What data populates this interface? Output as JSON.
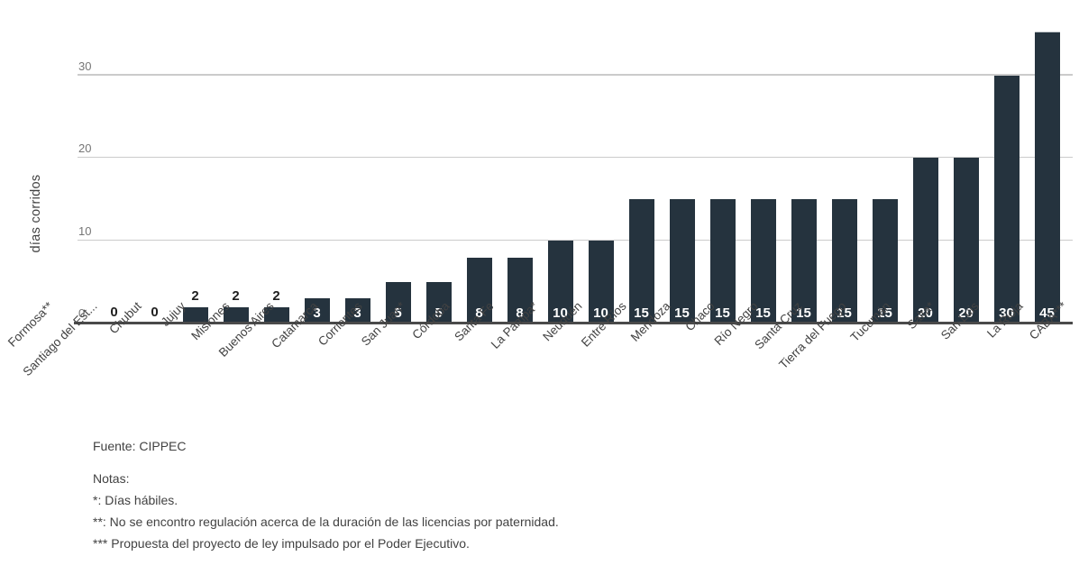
{
  "chart_data": {
    "type": "bar",
    "title": "",
    "xlabel": "",
    "ylabel": "días corridos",
    "yticks": [
      0,
      10,
      20,
      30
    ],
    "ylim": [
      0,
      35.2
    ],
    "grid": "horizontal",
    "legend": "none",
    "bar_color": "#25333e",
    "note": "CABA bar (45) is clipped at the top of the plot area",
    "categories": [
      "Formosa**",
      "Santiago del Est...",
      "Chubut",
      "Jujuy",
      "Misiones",
      "Buenos Aires",
      "Catamarca",
      "Corrientes",
      "San Juan*",
      "Córdoba",
      "Santa Fe",
      "La Pampa*",
      "Neuquén",
      "Entre Ríos",
      "Mendoza",
      "Chaco",
      "Río Negro",
      "Santa Cruz",
      "Tierra del Fuego",
      "Tucumán",
      "Salta*",
      "San Luis",
      "La Rioja",
      "CABA***"
    ],
    "values": [
      0,
      0,
      2,
      2,
      2,
      3,
      3,
      5,
      5,
      8,
      8,
      10,
      10,
      15,
      15,
      15,
      15,
      15,
      15,
      15,
      20,
      20,
      30,
      45
    ]
  },
  "footer": {
    "source": "Fuente: CIPPEC",
    "notes_title": "Notas:",
    "notes": [
      "*: Días hábiles.",
      "**: No se encontro regulación acerca de la duración de las licencias por paternidad.",
      "*** Propuesta del proyecto de ley impulsado por el Poder Ejecutivo."
    ]
  }
}
